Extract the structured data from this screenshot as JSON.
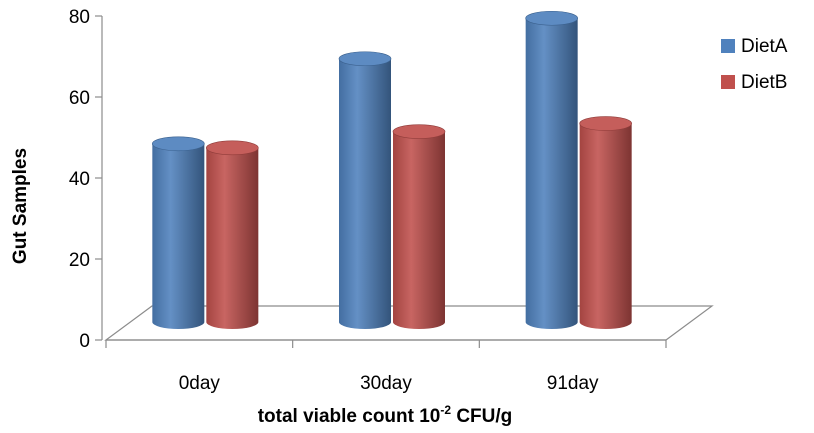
{
  "chart_data": {
    "type": "bar",
    "categories": [
      "0day",
      "30day",
      "91day"
    ],
    "series": [
      {
        "name": "DietA",
        "values": [
          44,
          65,
          75
        ],
        "color": "#4F81BD"
      },
      {
        "name": "DietB",
        "values": [
          43,
          47,
          49
        ],
        "color": "#C0504D"
      }
    ],
    "ylabel": "Gut Samples",
    "xlabel": {
      "main": "total viable count 10",
      "sup": "-2",
      "tail": " CFU/g"
    },
    "ylim": [
      0,
      80
    ],
    "yticks": [
      0,
      20,
      40,
      60,
      80
    ],
    "legend_position": "right",
    "grid": false,
    "style": "3d-cylinder"
  }
}
